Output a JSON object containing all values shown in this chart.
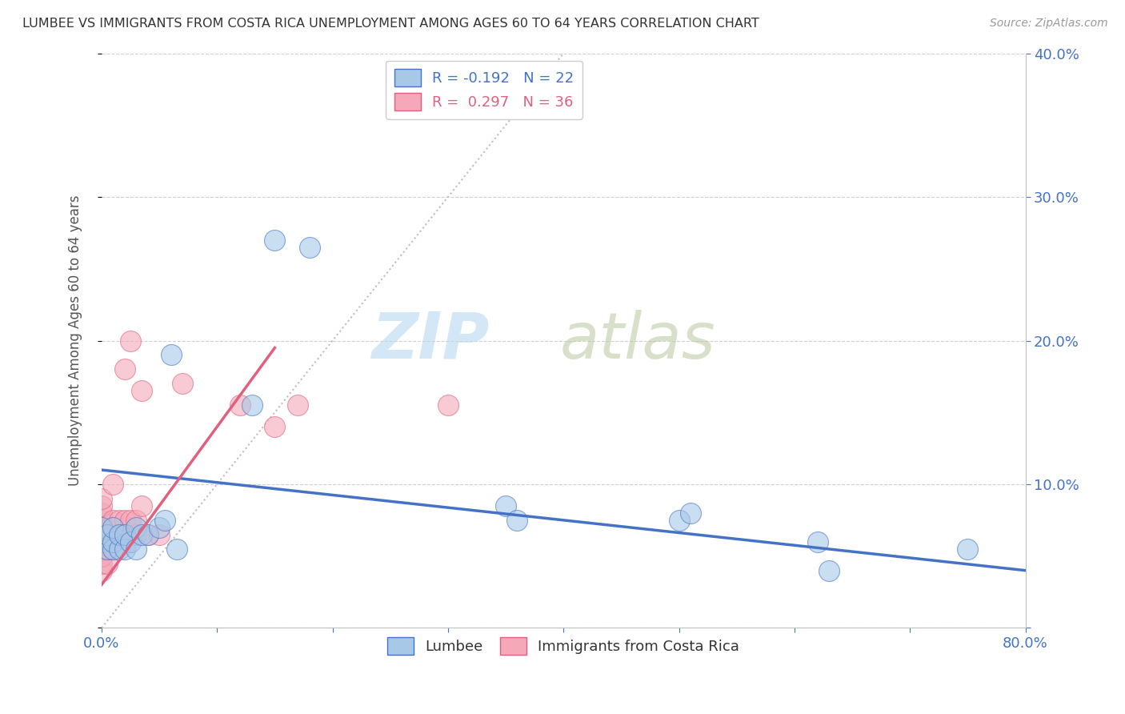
{
  "title": "LUMBEE VS IMMIGRANTS FROM COSTA RICA UNEMPLOYMENT AMONG AGES 60 TO 64 YEARS CORRELATION CHART",
  "source": "Source: ZipAtlas.com",
  "ylabel": "Unemployment Among Ages 60 to 64 years",
  "xlim": [
    0,
    0.8
  ],
  "ylim": [
    0,
    0.4
  ],
  "lumbee_color": "#a8c8e8",
  "costa_rica_color": "#f4a8b8",
  "lumbee_line_color": "#4472c4",
  "costa_rica_line_color": "#e06080",
  "diagonal_color": "#c8b8c0",
  "background_color": "#ffffff",
  "lumbee_x": [
    0.0,
    0.0,
    0.005,
    0.005,
    0.01,
    0.01,
    0.01,
    0.015,
    0.015,
    0.02,
    0.02,
    0.025,
    0.03,
    0.03,
    0.035,
    0.04,
    0.05,
    0.055,
    0.06,
    0.065,
    0.13,
    0.15,
    0.18,
    0.35,
    0.36,
    0.5,
    0.51,
    0.62,
    0.63,
    0.75
  ],
  "lumbee_y": [
    0.06,
    0.07,
    0.055,
    0.065,
    0.055,
    0.06,
    0.07,
    0.055,
    0.065,
    0.055,
    0.065,
    0.06,
    0.055,
    0.07,
    0.065,
    0.065,
    0.07,
    0.075,
    0.19,
    0.055,
    0.155,
    0.27,
    0.265,
    0.085,
    0.075,
    0.075,
    0.08,
    0.06,
    0.04,
    0.055
  ],
  "costa_rica_x": [
    0.0,
    0.0,
    0.0,
    0.0,
    0.0,
    0.0,
    0.0,
    0.0,
    0.0,
    0.0,
    0.0,
    0.005,
    0.005,
    0.005,
    0.01,
    0.01,
    0.01,
    0.01,
    0.015,
    0.015,
    0.02,
    0.02,
    0.02,
    0.025,
    0.025,
    0.03,
    0.03,
    0.035,
    0.035,
    0.04,
    0.05,
    0.07,
    0.12,
    0.15,
    0.17,
    0.3
  ],
  "costa_rica_y": [
    0.04,
    0.045,
    0.05,
    0.055,
    0.06,
    0.065,
    0.07,
    0.075,
    0.08,
    0.085,
    0.09,
    0.045,
    0.055,
    0.065,
    0.055,
    0.065,
    0.075,
    0.1,
    0.065,
    0.075,
    0.065,
    0.075,
    0.18,
    0.075,
    0.2,
    0.065,
    0.075,
    0.085,
    0.165,
    0.065,
    0.065,
    0.17,
    0.155,
    0.14,
    0.155,
    0.155
  ],
  "lumbee_trend_x0": 0.0,
  "lumbee_trend_x1": 0.8,
  "lumbee_trend_y0": 0.11,
  "lumbee_trend_y1": 0.04,
  "cr_trend_x0": 0.0,
  "cr_trend_x1": 0.15,
  "cr_trend_y0": 0.03,
  "cr_trend_y1": 0.195
}
